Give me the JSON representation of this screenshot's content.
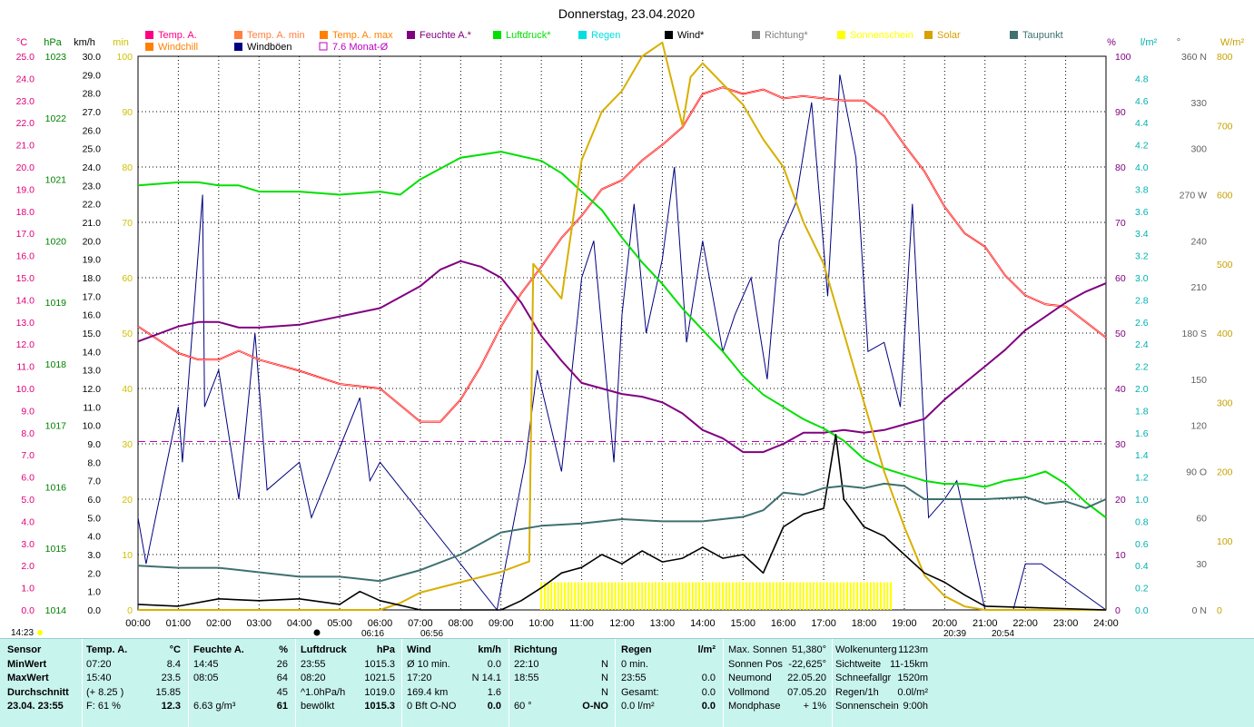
{
  "colors": {
    "temp": "#ff0000",
    "humidity": "#800080",
    "pressure": "#00e000",
    "wind": "#000000",
    "gust": "#000080",
    "solar": "#d8b000",
    "sunshine": "#ffff00",
    "dewpoint": "#407070",
    "avg": "#c000c0",
    "direction": "#808080"
  },
  "chart_data": {
    "type": "line",
    "title": "Donnerstag, 23.04.2020",
    "x_ticks": [
      "00:00",
      "01:00",
      "02:00",
      "03:00",
      "04:00",
      "05:00",
      "06:00",
      "07:00",
      "08:00",
      "09:00",
      "10:00",
      "11:00",
      "12:00",
      "13:00",
      "14:00",
      "15:00",
      "16:00",
      "17:00",
      "18:00",
      "19:00",
      "20:00",
      "21:00",
      "22:00",
      "23:00",
      "24:00"
    ],
    "x_range": [
      0,
      24
    ],
    "axes": {
      "temp": {
        "label": "°C",
        "min": 0,
        "max": 25,
        "ticks": [
          "0.0",
          "1.0",
          "2.0",
          "3.0",
          "4.0",
          "5.0",
          "6.0",
          "7.0",
          "8.0",
          "9.0",
          "10.0",
          "11.0",
          "12.0",
          "13.0",
          "14.0",
          "15.0",
          "16.0",
          "17.0",
          "18.0",
          "19.0",
          "20.0",
          "21.0",
          "22.0",
          "23.0",
          "24.0",
          "25.0"
        ]
      },
      "pressure": {
        "label": "hPa",
        "min": 1014,
        "max": 1023,
        "ticks": [
          "1014",
          "1015",
          "1016",
          "1017",
          "1018",
          "1019",
          "1020",
          "1021",
          "1022",
          "1023"
        ]
      },
      "wind": {
        "label": "km/h",
        "min": 0,
        "max": 30,
        "ticks": [
          "0.0",
          "1.0",
          "2.0",
          "3.0",
          "4.0",
          "5.0",
          "6.0",
          "7.0",
          "8.0",
          "9.0",
          "10.0",
          "11.0",
          "12.0",
          "13.0",
          "14.0",
          "15.0",
          "16.0",
          "17.0",
          "18.0",
          "19.0",
          "20.0",
          "21.0",
          "22.0",
          "23.0",
          "24.0",
          "25.0",
          "26.0",
          "27.0",
          "28.0",
          "29.0",
          "30.0"
        ]
      },
      "sunshine": {
        "label": "min",
        "min": 0,
        "max": 100,
        "ticks": [
          "0",
          "10",
          "20",
          "30",
          "40",
          "50",
          "60",
          "70",
          "80",
          "90",
          "100"
        ]
      },
      "humidity": {
        "label": "%",
        "min": 0,
        "max": 100,
        "ticks": [
          "0",
          "10",
          "20",
          "30",
          "40",
          "50",
          "60",
          "70",
          "80",
          "90",
          "100"
        ]
      },
      "rain": {
        "label": "l/m²",
        "min": 0,
        "max": 5,
        "ticks": [
          "0.0",
          "0.2",
          "0.4",
          "0.6",
          "0.8",
          "1.0",
          "1.2",
          "1.4",
          "1.6",
          "1.8",
          "2.0",
          "2.2",
          "2.4",
          "2.6",
          "2.8",
          "3.0",
          "3.2",
          "3.4",
          "3.6",
          "3.8",
          "4.0",
          "4.2",
          "4.4",
          "4.6",
          "4.8"
        ]
      },
      "direction": {
        "label": "°",
        "min": 0,
        "max": 360,
        "ticks": [
          "0 N",
          "30",
          "60",
          "90 O",
          "120",
          "150",
          "180 S",
          "210",
          "240",
          "270 W",
          "300",
          "330",
          "360 N"
        ]
      },
      "solar": {
        "label": "W/m²",
        "min": 0,
        "max": 800,
        "ticks": [
          "0",
          "100",
          "200",
          "300",
          "400",
          "500",
          "600",
          "700",
          "800"
        ]
      }
    },
    "legend": [
      {
        "name": "Temp. A.",
        "color": "#ff0080"
      },
      {
        "name": "Temp. A. min",
        "color": "#ff8040"
      },
      {
        "name": "Temp. A. max",
        "color": "#ff8000"
      },
      {
        "name": "Feuchte A.*",
        "color": "#800080"
      },
      {
        "name": "Luftdruck*",
        "color": "#00e000"
      },
      {
        "name": "Regen",
        "color": "#00e0e0"
      },
      {
        "name": "Wind*",
        "color": "#000000"
      },
      {
        "name": "Richtung*",
        "color": "#808080"
      },
      {
        "name": "Sonnenschein",
        "color": "#ffff00"
      },
      {
        "name": "Solar",
        "color": "#d8a000"
      },
      {
        "name": "Taupunkt",
        "color": "#407070"
      },
      {
        "name": "Windchill",
        "color": "#ff8000"
      },
      {
        "name": "Windböen",
        "color": "#000080"
      },
      {
        "name": "7.6 Monat-Ø",
        "color": "#c000c0"
      }
    ],
    "series": [
      {
        "name": "Temp. A.",
        "axis": "temp",
        "x": [
          0,
          1,
          1.5,
          2,
          2.5,
          3,
          4,
          5,
          6,
          7,
          7.5,
          8,
          8.5,
          9,
          9.5,
          10,
          10.5,
          11,
          11.5,
          12,
          12.5,
          13,
          13.5,
          14,
          14.5,
          15,
          15.5,
          16,
          16.5,
          17,
          17.5,
          18,
          18.5,
          19,
          19.5,
          20,
          20.5,
          21,
          21.5,
          22,
          22.5,
          23,
          23.5,
          24
        ],
        "y": [
          12.8,
          11.6,
          11.3,
          11.3,
          11.7,
          11.3,
          10.8,
          10.2,
          10.0,
          8.5,
          8.5,
          9.5,
          11.0,
          12.8,
          14.3,
          15.5,
          16.8,
          17.8,
          19.0,
          19.4,
          20.3,
          21.0,
          21.8,
          23.3,
          23.6,
          23.3,
          23.5,
          23.1,
          23.2,
          23.1,
          23.0,
          23.0,
          22.3,
          21.0,
          19.8,
          18.2,
          17.0,
          16.4,
          15.1,
          14.2,
          13.8,
          13.7,
          13.0,
          12.3
        ]
      },
      {
        "name": "Feuchte A.*",
        "axis": "humidity",
        "x": [
          0,
          1,
          1.5,
          2,
          2.5,
          3,
          4,
          5,
          6,
          7,
          7.5,
          8,
          8.5,
          9,
          9.5,
          10,
          10.5,
          11,
          11.5,
          12,
          12.5,
          13,
          13.5,
          14,
          14.5,
          15,
          15.5,
          16,
          16.5,
          17,
          17.5,
          18,
          18.5,
          19,
          19.5,
          20,
          20.5,
          21,
          21.5,
          22,
          22.5,
          23,
          23.5,
          24
        ],
        "y": [
          48.5,
          51.2,
          52,
          52,
          51,
          51,
          51.5,
          53,
          54.5,
          58.5,
          61.5,
          63,
          62,
          60,
          55.5,
          49.5,
          45,
          41,
          40,
          39,
          38.5,
          37.5,
          35.5,
          32.5,
          31,
          28.5,
          28.5,
          30,
          32,
          32,
          32.5,
          32,
          32.5,
          33.5,
          34.5,
          38,
          41,
          44,
          47,
          50.5,
          53,
          55.5,
          57.5,
          59
        ]
      },
      {
        "name": "Luftdruck*",
        "axis": "pressure",
        "x": [
          0,
          1,
          1.5,
          2,
          2.5,
          3,
          4,
          5,
          6,
          6.5,
          7,
          8,
          9,
          10,
          10.5,
          11,
          11.5,
          12,
          12.5,
          13,
          13.5,
          14,
          14.5,
          15,
          15.5,
          16,
          16.5,
          17,
          17.5,
          18,
          18.5,
          19,
          19.5,
          20,
          20.5,
          21,
          21.5,
          22,
          22.5,
          23,
          23.5,
          24
        ],
        "y": [
          1020.9,
          1020.95,
          1020.95,
          1020.9,
          1020.9,
          1020.8,
          1020.8,
          1020.75,
          1020.8,
          1020.75,
          1021.0,
          1021.35,
          1021.45,
          1021.3,
          1021.1,
          1020.8,
          1020.5,
          1020.05,
          1019.65,
          1019.3,
          1018.9,
          1018.55,
          1018.2,
          1017.8,
          1017.5,
          1017.3,
          1017.1,
          1016.95,
          1016.75,
          1016.45,
          1016.3,
          1016.2,
          1016.1,
          1016.05,
          1016.05,
          1016.0,
          1016.1,
          1016.15,
          1016.25,
          1016.05,
          1015.75,
          1015.5
        ]
      },
      {
        "name": "Solar",
        "axis": "solar",
        "x": [
          0,
          6,
          6.5,
          7,
          8,
          9,
          9.7,
          9.8,
          10.5,
          11,
          11.5,
          12,
          12.5,
          13,
          13.5,
          13.7,
          14,
          14.5,
          15,
          15.5,
          16,
          16.5,
          17,
          17.5,
          18,
          18.5,
          19,
          19.5,
          20,
          20.5,
          21,
          24
        ],
        "y": [
          0,
          0,
          10,
          25,
          40,
          55,
          70,
          500,
          450,
          650,
          720,
          750,
          800,
          820,
          700,
          770,
          790,
          760,
          730,
          680,
          640,
          560,
          500,
          400,
          300,
          200,
          120,
          50,
          20,
          5,
          0,
          0
        ]
      },
      {
        "name": "Wind*",
        "axis": "wind",
        "x": [
          0,
          1,
          2,
          3,
          4,
          5,
          5.5,
          6,
          7,
          8,
          9,
          9.5,
          10,
          10.5,
          11,
          11.5,
          12,
          12.5,
          13,
          13.5,
          14,
          14.5,
          15,
          15.5,
          16,
          16.5,
          17,
          17.3,
          17.5,
          18,
          18.5,
          19,
          19.5,
          20,
          20.5,
          21,
          24
        ],
        "y": [
          0.3,
          0.2,
          0.6,
          0.5,
          0.6,
          0.3,
          1.0,
          0.5,
          0.0,
          0.0,
          0.0,
          0.5,
          1.2,
          2.0,
          2.3,
          3.0,
          2.5,
          3.2,
          2.6,
          2.8,
          3.4,
          2.8,
          3.0,
          2.0,
          4.5,
          5.2,
          5.5,
          9.5,
          6.0,
          4.5,
          4.0,
          3.0,
          2.0,
          1.5,
          0.8,
          0.2,
          0.0
        ]
      },
      {
        "name": "Taupunkt",
        "axis": "temp",
        "x": [
          0,
          1,
          2,
          3,
          4,
          5,
          6,
          7,
          8,
          9,
          10,
          11,
          12,
          13,
          14,
          15,
          15.5,
          16,
          16.5,
          17,
          17.5,
          18,
          18.5,
          19,
          19.5,
          20,
          21,
          22,
          22.5,
          23,
          23.5,
          24
        ],
        "y": [
          2.0,
          1.9,
          1.9,
          1.7,
          1.5,
          1.5,
          1.3,
          1.8,
          2.5,
          3.5,
          3.8,
          3.9,
          4.1,
          4.0,
          4.0,
          4.2,
          4.5,
          5.3,
          5.2,
          5.5,
          5.6,
          5.5,
          5.7,
          5.6,
          5.0,
          5.0,
          5.0,
          5.1,
          4.8,
          4.9,
          4.6,
          5.0
        ]
      }
    ],
    "avg_line": {
      "name": "7.6 Monat-Ø",
      "axis": "temp",
      "value": 7.6
    },
    "gust_peaks": {
      "axis": "wind",
      "x": [
        0,
        0.2,
        1,
        1.1,
        1.6,
        1.65,
        2.0,
        2.5,
        2.9,
        3.2,
        4.0,
        4.3,
        5.5,
        5.75,
        6.0,
        8.9,
        9.6,
        9.9,
        10.5,
        11,
        11.3,
        11.8,
        12,
        12.3,
        12.6,
        13,
        13.3,
        13.6,
        14,
        14.5,
        14.8,
        15.2,
        15.6,
        15.9,
        16.3,
        16.7,
        17.1,
        17.4,
        17.8,
        18.1,
        18.5,
        18.9,
        19.2,
        19.6,
        20,
        20.3,
        21,
        21.7,
        22,
        22.4,
        24
      ],
      "y": [
        5,
        2.5,
        11,
        8,
        22.5,
        11,
        13,
        6,
        15,
        6.5,
        8,
        5,
        11.5,
        7,
        8,
        0,
        8,
        13,
        7.5,
        18,
        20,
        8,
        16,
        22,
        15,
        19,
        24,
        14.5,
        20,
        14,
        16,
        18,
        12.5,
        20,
        22,
        27.5,
        17,
        29,
        24.5,
        14,
        14.5,
        11,
        22,
        5,
        6,
        7,
        0,
        0,
        2.5,
        2.5,
        0
      ]
    },
    "sun_markers": {
      "sunrise": "06:16",
      "sunrise2": "06:56",
      "sunset": "20:39",
      "sunset2": "20:54",
      "moon_time": "14:23"
    },
    "sunshine_block": {
      "axis": "sunshine",
      "start": 10.0,
      "end": 18.7,
      "value": 5
    }
  },
  "summary": {
    "sensor": {
      "h": "Sensor",
      "rows": [
        "MinWert",
        "MaxWert",
        "Durchschnitt",
        "23.04. 23:55"
      ]
    },
    "temp": {
      "h": "Temp. A.",
      "unit": "°C",
      "rows": [
        [
          "07:20",
          "8.4"
        ],
        [
          "15:40",
          "23.5"
        ],
        [
          "(+ 8.25 )",
          "15.85"
        ],
        [
          "F: 61 %",
          "12.3"
        ]
      ]
    },
    "hum": {
      "h": "Feuchte A.",
      "unit": "%",
      "rows": [
        [
          "14:45",
          "26"
        ],
        [
          "08:05",
          "64"
        ],
        [
          "",
          "45"
        ],
        [
          "6.63 g/m³",
          "61"
        ]
      ]
    },
    "press": {
      "h": "Luftdruck",
      "unit": "hPa",
      "rows": [
        [
          "23:55",
          "1015.3"
        ],
        [
          "08:20",
          "1021.5"
        ],
        [
          "^1.0hPa/h",
          "1019.0"
        ],
        [
          "bewölkt",
          "1015.3"
        ]
      ]
    },
    "wind": {
      "h": "Wind",
      "unit": "km/h",
      "rows": [
        [
          "Ø 10 min.",
          "0.0"
        ],
        [
          "17:20",
          "N 14.1"
        ],
        [
          "169.4 km",
          "1.6"
        ],
        [
          "0 Bft O-NO",
          "0.0"
        ]
      ]
    },
    "dir": {
      "h": "Richtung",
      "rows": [
        [
          "22:10",
          "N"
        ],
        [
          "18:55",
          "N"
        ],
        [
          "",
          "N"
        ],
        [
          "60 °",
          "O-NO"
        ]
      ]
    },
    "rain": {
      "h": "Regen",
      "unit": "l/m²",
      "rows": [
        [
          "0 min.",
          ""
        ],
        [
          "23:55",
          "0.0"
        ],
        [
          "Gesamt:",
          "0.0"
        ],
        [
          "0.0 l/m²",
          "0.0"
        ]
      ]
    },
    "sun": {
      "rows": [
        [
          "Max. Sonnen",
          "51,380°"
        ],
        [
          "Sonnen Pos",
          "-22,625°"
        ],
        [
          "Neumond",
          "22.05.20"
        ],
        [
          "Vollmond",
          "07.05.20"
        ],
        [
          "Mondphase",
          "+ 1%"
        ]
      ]
    },
    "misc": {
      "rows": [
        [
          "Wolkenunterg",
          "1123m"
        ],
        [
          "Sichtweite",
          "11-15km"
        ],
        [
          "Schneefallgr",
          "1520m"
        ],
        [
          "Regen/1h",
          "0.0l/m²"
        ],
        [
          "Sonnenschein",
          "9:00h"
        ]
      ]
    }
  }
}
